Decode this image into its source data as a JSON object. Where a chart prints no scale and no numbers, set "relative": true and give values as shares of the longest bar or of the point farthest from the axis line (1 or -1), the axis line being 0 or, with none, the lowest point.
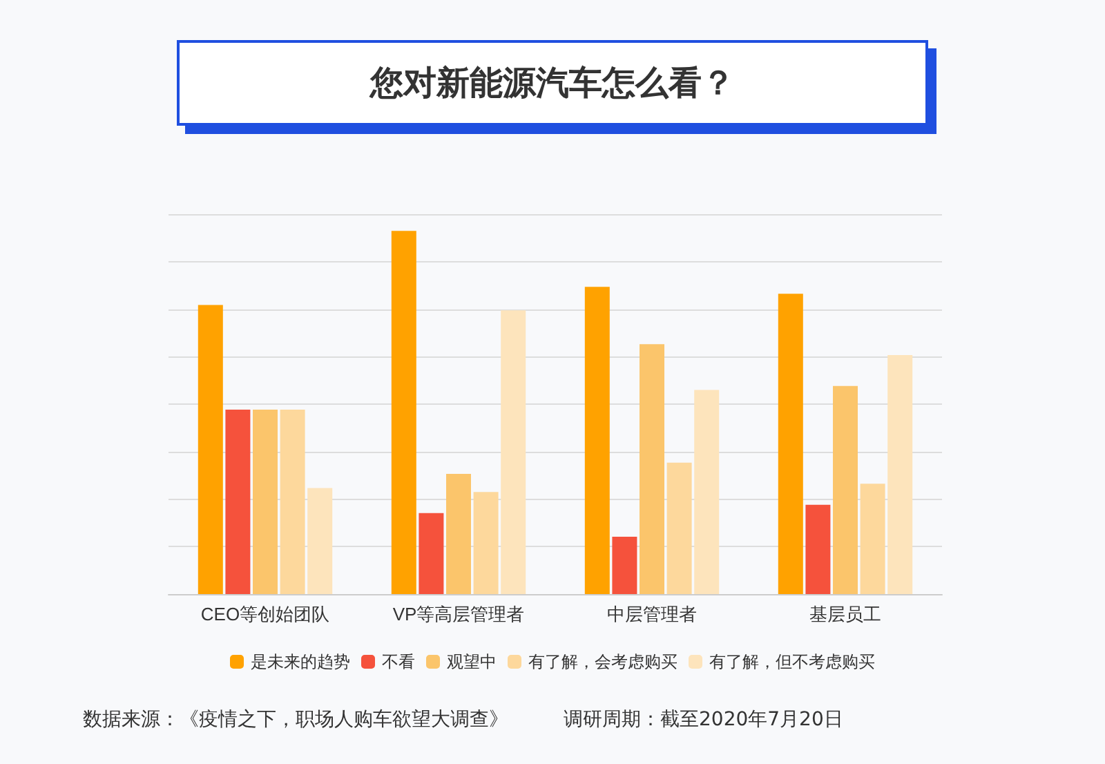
{
  "chart_data": {
    "type": "bar",
    "title": "您对新能源汽车怎么看？",
    "relative": true,
    "grid": "y",
    "legend": "bottom",
    "categories": [
      "CEO等创始团队",
      "VP等高层管理者",
      "中层管理者",
      "基层员工"
    ],
    "series": [
      {
        "name": "是未来的趋势",
        "color": "#ffa200",
        "values": [
          0.796,
          1,
          0.846,
          0.827
        ]
      },
      {
        "name": "不看",
        "color": "#f5523c",
        "values": [
          0.508,
          0.223,
          0.158,
          0.246
        ]
      },
      {
        "name": "观望中",
        "color": "#fbc56b",
        "values": [
          0.508,
          0.331,
          0.688,
          0.573
        ]
      },
      {
        "name": "有了解，会考虑购买",
        "color": "#fdd89c",
        "values": [
          0.508,
          0.281,
          0.362,
          0.304
        ]
      },
      {
        "name": "有了解，但不考虑购买",
        "color": "#fde4bc",
        "values": [
          0.292,
          0.781,
          0.562,
          0.658
        ]
      }
    ],
    "annotations": [
      "数据来源：《疫情之下，职场人购车欲望大调查》",
      "调研周期：截至2020年7月20日"
    ]
  }
}
